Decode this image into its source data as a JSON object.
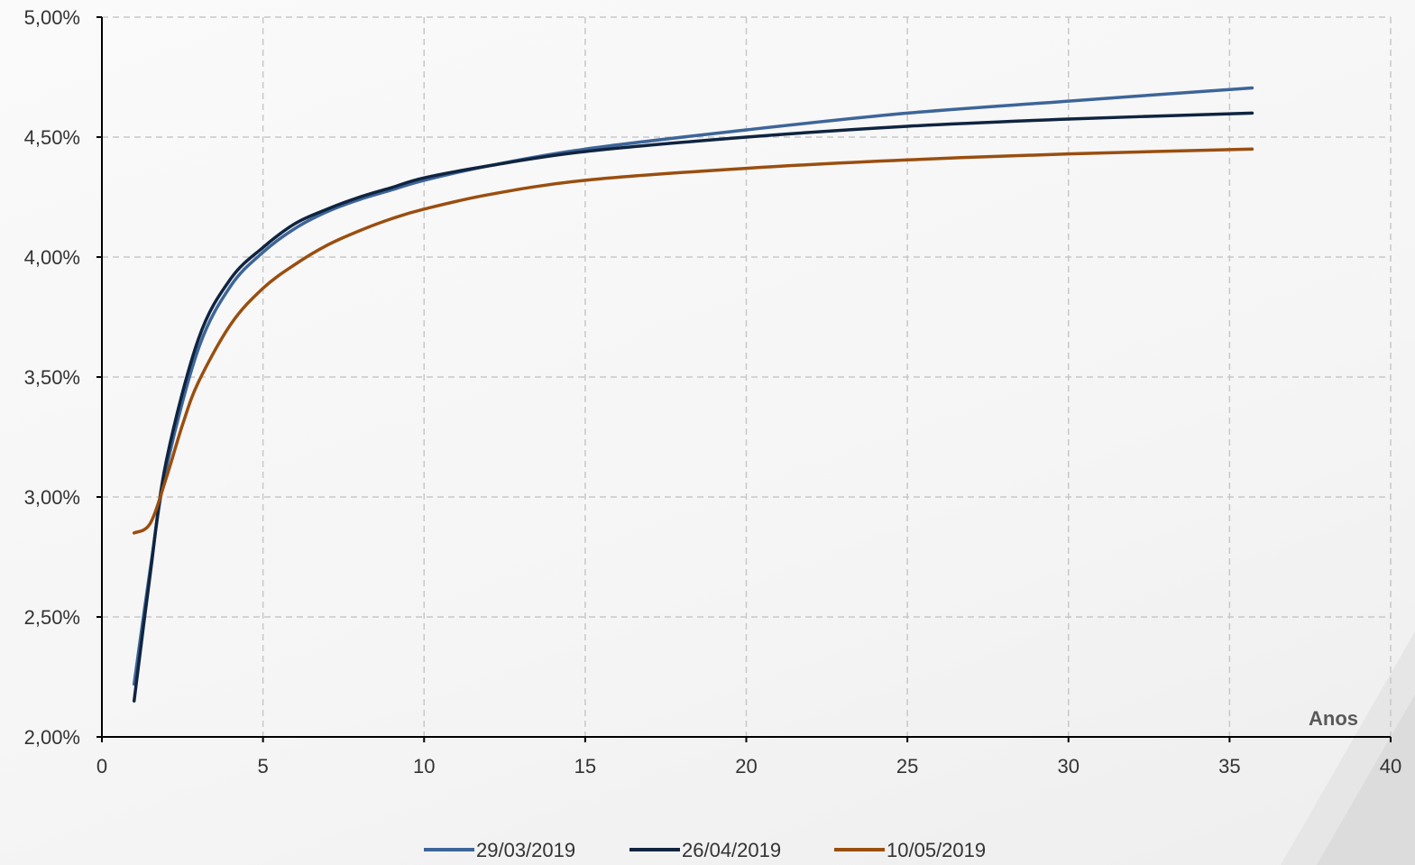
{
  "chart_data": {
    "type": "line",
    "title": "",
    "xlabel": "Anos",
    "ylabel": "",
    "xlim": [
      0,
      40
    ],
    "ylim": [
      2.0,
      5.0
    ],
    "x_ticks": [
      0,
      5,
      10,
      15,
      20,
      25,
      30,
      35,
      40
    ],
    "y_ticks": [
      2.0,
      2.5,
      3.0,
      3.5,
      4.0,
      4.5,
      5.0
    ],
    "x_tick_labels": [
      "0",
      "5",
      "10",
      "15",
      "20",
      "25",
      "30",
      "35",
      "40"
    ],
    "y_tick_labels": [
      "2,00%",
      "2,50%",
      "3,00%",
      "3,50%",
      "4,00%",
      "4,50%",
      "5,00%"
    ],
    "grid": true,
    "legend_position": "bottom",
    "series": [
      {
        "name": "29/03/2019",
        "color": "#3d6599",
        "points": [
          [
            1,
            2.22
          ],
          [
            1.5,
            2.7
          ],
          [
            2,
            3.12
          ],
          [
            3,
            3.62
          ],
          [
            4,
            3.88
          ],
          [
            5,
            4.02
          ],
          [
            6,
            4.12
          ],
          [
            7,
            4.19
          ],
          [
            8,
            4.24
          ],
          [
            9,
            4.28
          ],
          [
            10,
            4.32
          ],
          [
            12,
            4.38
          ],
          [
            15,
            4.45
          ],
          [
            20,
            4.53
          ],
          [
            25,
            4.6
          ],
          [
            30,
            4.65
          ],
          [
            35.7,
            4.705
          ]
        ]
      },
      {
        "name": "26/04/2019",
        "color": "#0f2440",
        "points": [
          [
            1,
            2.15
          ],
          [
            1.5,
            2.68
          ],
          [
            2,
            3.15
          ],
          [
            3,
            3.66
          ],
          [
            4,
            3.91
          ],
          [
            5,
            4.04
          ],
          [
            6,
            4.14
          ],
          [
            7,
            4.2
          ],
          [
            8,
            4.25
          ],
          [
            9,
            4.29
          ],
          [
            10,
            4.33
          ],
          [
            12,
            4.38
          ],
          [
            15,
            4.44
          ],
          [
            20,
            4.5
          ],
          [
            25,
            4.545
          ],
          [
            30,
            4.575
          ],
          [
            35.7,
            4.6
          ]
        ]
      },
      {
        "name": "10/05/2019",
        "color": "#9a4e0f",
        "points": [
          [
            1,
            2.85
          ],
          [
            1.5,
            2.89
          ],
          [
            2,
            3.08
          ],
          [
            2.5,
            3.3
          ],
          [
            3,
            3.48
          ],
          [
            4,
            3.72
          ],
          [
            5,
            3.87
          ],
          [
            6,
            3.97
          ],
          [
            7,
            4.05
          ],
          [
            8,
            4.11
          ],
          [
            9,
            4.16
          ],
          [
            10,
            4.2
          ],
          [
            12,
            4.26
          ],
          [
            15,
            4.32
          ],
          [
            20,
            4.37
          ],
          [
            25,
            4.405
          ],
          [
            30,
            4.43
          ],
          [
            35.7,
            4.45
          ]
        ]
      }
    ]
  }
}
